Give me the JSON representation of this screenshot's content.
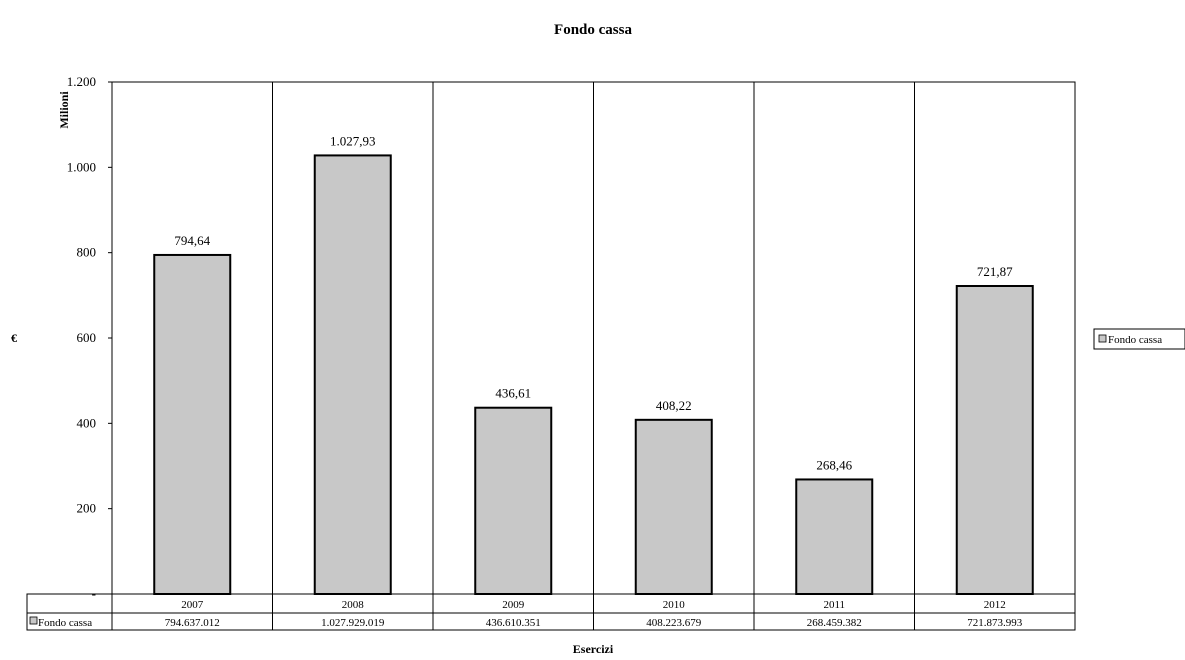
{
  "chart_data": {
    "type": "bar",
    "title": "Fondo cassa",
    "xlabel": "Esercizi",
    "ylabel": "€",
    "yunit_label": "Milioni",
    "categories": [
      "2007",
      "2008",
      "2009",
      "2010",
      "2011",
      "2012"
    ],
    "series": [
      {
        "name": "Fondo cassa",
        "values": [
          794.64,
          1027.93,
          436.61,
          408.22,
          268.46,
          721.87
        ],
        "data_labels": [
          "794,64",
          "1.027,93",
          "436,61",
          "408,22",
          "268,46",
          "721,87"
        ],
        "table_values": [
          "794.637.012",
          "1.027.929.019",
          "436.610.351",
          "408.223.679",
          "268.459.382",
          "721.873.993"
        ]
      }
    ],
    "ylim": [
      0,
      1200
    ],
    "yticks": [
      0,
      200,
      400,
      600,
      800,
      1000,
      1200
    ],
    "ytick_labels": [
      "-",
      "200",
      "400",
      "600",
      "800",
      "1.000",
      "1.200"
    ],
    "grid": "vertical category dividers",
    "legend": {
      "position": "right",
      "entries": [
        "Fondo cassa"
      ]
    },
    "data_table": true,
    "bar_color": "#c8c8c8"
  }
}
